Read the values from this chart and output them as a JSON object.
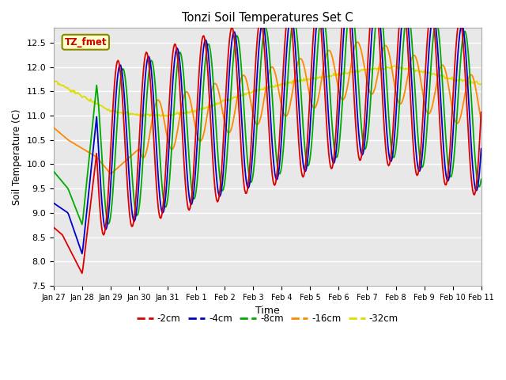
{
  "title": "Tonzi Soil Temperatures Set C",
  "xlabel": "Time",
  "ylabel": "Soil Temperature (C)",
  "ylim": [
    7.5,
    12.8
  ],
  "ylim_display": [
    7.5,
    12.5
  ],
  "legend_label": "TZ_fmet",
  "series_labels": [
    "-2cm",
    "-4cm",
    "-8cm",
    "-16cm",
    "-32cm"
  ],
  "series_colors": [
    "#dd0000",
    "#0000cc",
    "#00aa00",
    "#ff8800",
    "#dddd00"
  ],
  "background_color": "#e8e8e8",
  "grid_color": "#ffffff",
  "tick_labels": [
    "Jan 27",
    "Jan 28",
    "Jan 29",
    "Jan 30",
    "Jan 31",
    "Feb 1",
    "Feb 2",
    "Feb 3",
    "Feb 4",
    "Feb 5",
    "Feb 6",
    "Feb 7",
    "Feb 8",
    "Feb 9",
    "Feb 10",
    "Feb 11"
  ],
  "yticks": [
    7.5,
    8.0,
    8.5,
    9.0,
    9.5,
    10.0,
    10.5,
    11.0,
    11.5,
    12.0,
    12.5
  ]
}
